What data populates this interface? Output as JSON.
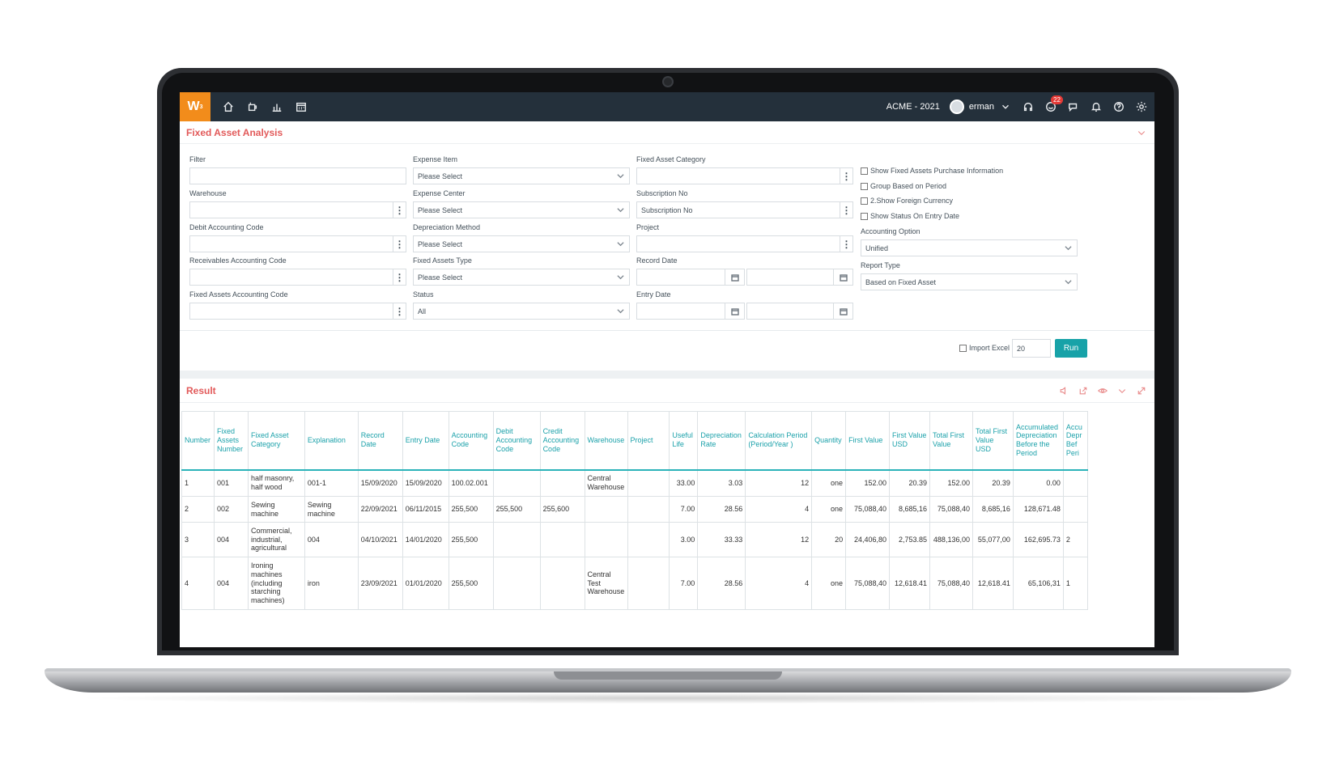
{
  "topbar": {
    "logo": "W",
    "company": "ACME - 2021",
    "user": "erman",
    "notifications_count": "22"
  },
  "analysis_panel": {
    "title": "Fixed Asset Analysis"
  },
  "form": {
    "filter_label": "Filter",
    "warehouse_label": "Warehouse",
    "debit_label": "Debit Accounting Code",
    "receivables_label": "Receivables Accounting Code",
    "fixed_assets_code_label": "Fixed Assets Accounting Code",
    "expense_item_label": "Expense Item",
    "expense_item_value": "Please Select",
    "expense_center_label": "Expense Center",
    "expense_center_value": "Please Select",
    "depreciation_method_label": "Depreciation Method",
    "depreciation_method_value": "Please Select",
    "fixed_assets_type_label": "Fixed Assets Type",
    "fixed_assets_type_value": "Please Select",
    "status_label": "Status",
    "status_value": "All",
    "category_label": "Fixed Asset Category",
    "subscription_label": "Subscription No",
    "subscription_placeholder": "Subscription No",
    "project_label": "Project",
    "record_date_label": "Record Date",
    "entry_date_label": "Entry Date",
    "chk_purchase": "Show Fixed Assets Purchase Information",
    "chk_group": "Group Based on Period",
    "chk_foreign": "2.Show Foreign Currency",
    "chk_status": "Show Status On Entry Date",
    "accounting_option_label": "Accounting Option",
    "accounting_option_value": "Unified",
    "report_type_label": "Report Type",
    "report_type_value": "Based on Fixed Asset",
    "import_excel": "Import Excel",
    "page_size": "20",
    "run": "Run"
  },
  "result_panel": {
    "title": "Result"
  },
  "table": {
    "headers": [
      "Number",
      "Fixed Assets Number",
      "Fixed Asset Category",
      "Explanation",
      "Record Date",
      "Entry Date",
      "Accounting Code",
      "Debit Accounting Code",
      "Credit Accounting Code",
      "Warehouse",
      "Project",
      "Useful Life",
      "Depreciation Rate",
      "Calculation Period (Period/Year )",
      "Quantity",
      "First Value",
      "First Value USD",
      "Total First Value",
      "Total First Value USD",
      "Accumulated Depreciation Before the Period",
      "Accu Depr Bef Peri"
    ],
    "rows": [
      [
        "1",
        "001",
        "half masonry, half wood",
        "001-1",
        "15/09/2020",
        "15/09/2020",
        "100.02.001",
        "",
        "",
        "Central Warehouse",
        "",
        "33.00",
        "3.03",
        "12",
        "one",
        "152.00",
        "20.39",
        "152.00",
        "20.39",
        "0.00",
        ""
      ],
      [
        "2",
        "002",
        "Sewing machine",
        "Sewing machine",
        "22/09/2021",
        "06/11/2015",
        "255,500",
        "255,500",
        "255,600",
        "",
        "",
        "7.00",
        "28.56",
        "4",
        "one",
        "75,088,40",
        "8,685,16",
        "75,088,40",
        "8,685,16",
        "128,671.48",
        ""
      ],
      [
        "3",
        "004",
        "Commercial, industrial, agricultural",
        "004",
        "04/10/2021",
        "14/01/2020",
        "255,500",
        "",
        "",
        "",
        "",
        "3.00",
        "33.33",
        "12",
        "20",
        "24,406,80",
        "2,753.85",
        "488,136,00",
        "55,077,00",
        "162,695.73",
        "2"
      ],
      [
        "4",
        "004",
        "Ironing machines (including starching machines)",
        "iron",
        "23/09/2021",
        "01/01/2020",
        "255,500",
        "",
        "",
        "Central Test Warehouse",
        "",
        "7.00",
        "28.56",
        "4",
        "one",
        "75,088,40",
        "12,618.41",
        "75,088,40",
        "12,618.41",
        "65,106,31",
        "1"
      ]
    ]
  }
}
